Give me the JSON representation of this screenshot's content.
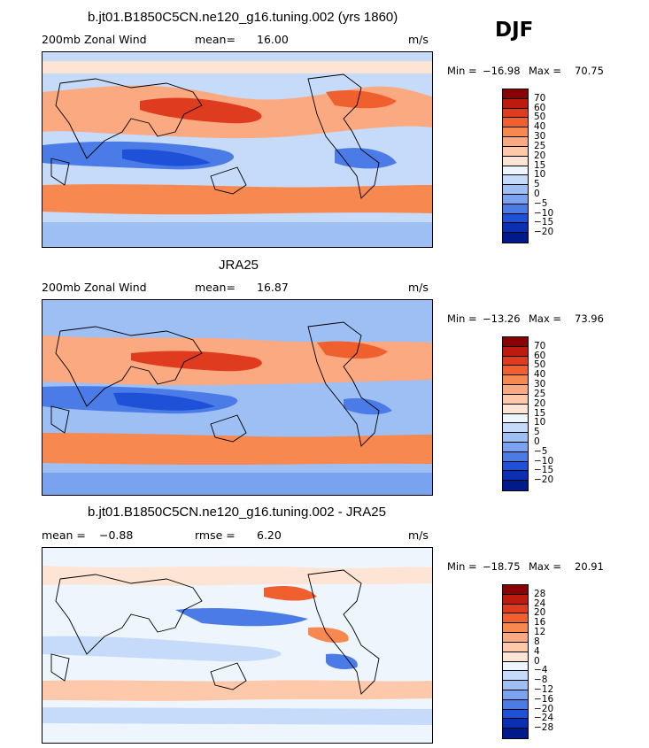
{
  "season": "DJF",
  "chart_data": [
    {
      "type": "heatmap",
      "title": "b.jt01.B1850C5CN.ne120_g16.tuning.002 (yrs 1860)",
      "left_label": "200mb Zonal Wind",
      "stat_label": "mean=",
      "stat_value": "16.00",
      "units": "m/s",
      "min_label": "Min =",
      "min_value": "−16.98",
      "max_label": "Max =",
      "max_value": "70.75",
      "colorbar_levels": [
        "70",
        "60",
        "50",
        "40",
        "30",
        "25",
        "20",
        "15",
        "10",
        "5",
        "0",
        "−5",
        "−10",
        "−15",
        "−20"
      ],
      "colorbar_colors": [
        "#8b0000",
        "#bd1b0d",
        "#df3c1f",
        "#f0602f",
        "#f7884f",
        "#fba980",
        "#fdc9aa",
        "#fde4d4",
        "#eef5fd",
        "#c6dbfa",
        "#9dbff4",
        "#7aa3ef",
        "#4a7be6",
        "#1f50d8",
        "#0a2fb0",
        "#001a8c"
      ]
    },
    {
      "type": "heatmap",
      "title": "JRA25",
      "left_label": "200mb Zonal Wind",
      "stat_label": "mean=",
      "stat_value": "16.87",
      "units": "m/s",
      "min_label": "Min =",
      "min_value": "−13.26",
      "max_label": "Max =",
      "max_value": "73.96",
      "colorbar_levels": [
        "70",
        "60",
        "50",
        "40",
        "30",
        "25",
        "20",
        "15",
        "10",
        "5",
        "0",
        "−5",
        "−10",
        "−15",
        "−20"
      ],
      "colorbar_colors": [
        "#8b0000",
        "#bd1b0d",
        "#df3c1f",
        "#f0602f",
        "#f7884f",
        "#fba980",
        "#fdc9aa",
        "#fde4d4",
        "#eef5fd",
        "#c6dbfa",
        "#9dbff4",
        "#7aa3ef",
        "#4a7be6",
        "#1f50d8",
        "#0a2fb0",
        "#001a8c"
      ]
    },
    {
      "type": "heatmap",
      "title": "b.jt01.B1850C5CN.ne120_g16.tuning.002 - JRA25",
      "left_label": "mean =",
      "left_value": "−0.88",
      "stat_label": "rmse =",
      "stat_value": "6.20",
      "units": "m/s",
      "min_label": "Min =",
      "min_value": "−18.75",
      "max_label": "Max =",
      "max_value": "20.91",
      "colorbar_levels": [
        "28",
        "24",
        "20",
        "16",
        "12",
        "8",
        "4",
        "0",
        "−4",
        "−8",
        "−12",
        "−16",
        "−20",
        "−24",
        "−28"
      ],
      "colorbar_colors": [
        "#8b0000",
        "#bd1b0d",
        "#df3c1f",
        "#f0602f",
        "#f7884f",
        "#fba980",
        "#fdc9aa",
        "#fde4d4",
        "#eef5fd",
        "#c6dbfa",
        "#9dbff4",
        "#7aa3ef",
        "#4a7be6",
        "#1f50d8",
        "#0a2fb0",
        "#001a8c"
      ]
    }
  ]
}
